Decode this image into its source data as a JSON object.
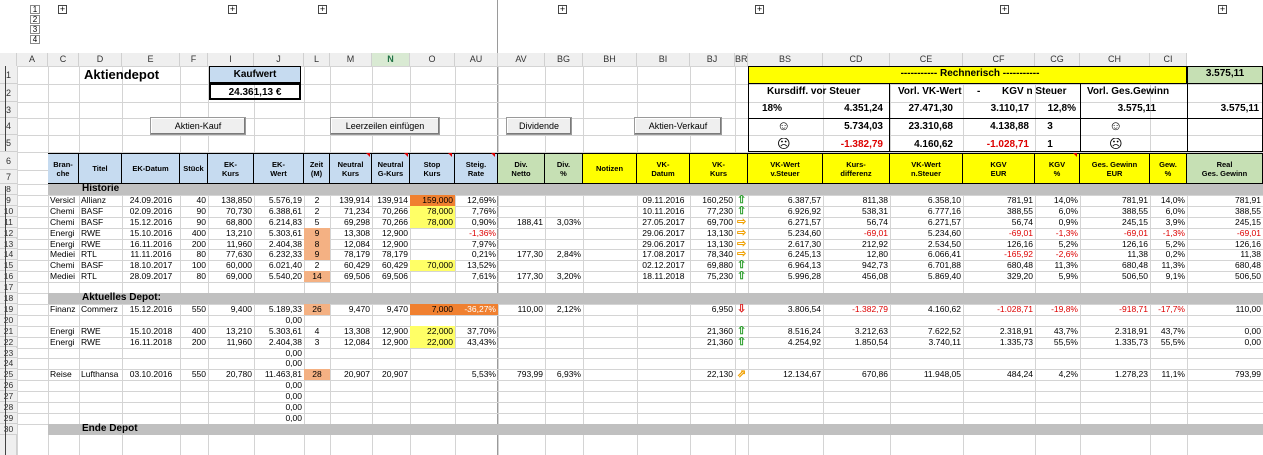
{
  "sheet_title": "Aktiendepot",
  "kaufwert_label": "Kaufwert",
  "kaufwert_value": "24.361,13 €",
  "buttons": {
    "aktien_kauf": "Aktien-Kauf",
    "leerzeilen": "Leerzeilen einfügen",
    "dividende": "Dividende",
    "aktien_verkauf": "Aktien-Verkauf"
  },
  "outline_levels_cols": [
    "1",
    "2",
    "3",
    "4"
  ],
  "outline_levels_rows": [
    "1",
    "2"
  ],
  "columns": [
    "A",
    "C",
    "D",
    "E",
    "F",
    "I",
    "J",
    "L",
    "M",
    "N",
    "O",
    "AU",
    "AV",
    "BG",
    "BH",
    "BI",
    "BJ",
    "BR",
    "BS",
    "CD",
    "CE",
    "CF",
    "CG",
    "CH",
    "CI"
  ],
  "row_numbers": [
    "1",
    "2",
    "3",
    "4",
    "5",
    "6",
    "7",
    "8",
    "9",
    "10",
    "11",
    "12",
    "13",
    "14",
    "15",
    "16",
    "17",
    "18",
    "19",
    "20",
    "21",
    "22",
    "23",
    "24",
    "25",
    "26",
    "27",
    "28",
    "29",
    "30"
  ],
  "rechnerisch": {
    "title": "----------- Rechnerisch -----------",
    "realisiert": "3.575,11",
    "kursdiff_label": "Kursdiff. vor Steuer",
    "vorl_vk_label": "Vorl. VK-Wert",
    "dash": "-",
    "kgv_label": "KGV n Steuer",
    "vorl_gewinn_label": "Vorl. Ges.Gewinn",
    "pct": "18%",
    "kursdiff": "4.351,24",
    "vorl_vk": "27.471,30",
    "kgv": "3.110,17",
    "kgv_pct": "12,8%",
    "vorl_gewinn": "3.575,11",
    "good_kursdiff": "5.734,03",
    "good_vk": "23.310,68",
    "good_kgv": "4.138,88",
    "good_count": "3",
    "bad_kursdiff": "-1.382,79",
    "bad_vk": "4.160,62",
    "bad_kgv": "-1.028,71",
    "bad_count": "1",
    "smile_happy": "☺",
    "smile_sad": "☹"
  },
  "headers": [
    "Bran-\nche",
    "Titel",
    "EK-Datum",
    "Stück",
    "EK-\nKurs",
    "EK-\nWert",
    "Zeit\n(M)",
    "Neutral\nKurs",
    "Neutral\nG-Kurs",
    "Stop\nKurs",
    "Steig.\nRate",
    "Div.\nNetto",
    "Div.\n%",
    "Notizen",
    "VK-\nDatum",
    "VK-\nKurs",
    "VK-Wert\nv.Steuer",
    "Kurs-\ndifferenz",
    "VK-Wert\nn.Steuer",
    "KGV\nEUR",
    "KGV\n%",
    "Ges. Gewinn\nEUR",
    "Gew.\n%",
    "Real\nGes. Gewinn"
  ],
  "sections": {
    "historie": "Historie",
    "aktuelles": "Aktuelles Depot:",
    "ende": "Ende Depot"
  },
  "rows": [
    {
      "n": "9",
      "cells": [
        "Versicl",
        "Allianz",
        "24.09.2016",
        "40",
        "138,850",
        "5.576,19",
        "2",
        "139,914",
        "139,914",
        "159,000",
        "12,69%",
        "",
        "",
        "",
        "09.11.2016",
        "160,250",
        "up",
        "6.387,57",
        "811,38",
        "6.358,10",
        "781,91",
        "14,0%",
        "781,91",
        "14,0%",
        "781,91"
      ]
    },
    {
      "n": "10",
      "cells": [
        "Chemi",
        "BASF",
        "02.09.2016",
        "90",
        "70,730",
        "6.388,61",
        "2",
        "71,234",
        "70,266",
        "78,000",
        "7,76%",
        "",
        "",
        "",
        "10.11.2016",
        "77,230",
        "up",
        "6.926,92",
        "538,31",
        "6.777,16",
        "388,55",
        "6,0%",
        "388,55",
        "6,0%",
        "388,55"
      ]
    },
    {
      "n": "11",
      "cells": [
        "Chemi",
        "BASF",
        "15.12.2016",
        "90",
        "68,800",
        "6.214,83",
        "5",
        "69,298",
        "70,266",
        "78,000",
        "0,90%",
        "188,41",
        "3,03%",
        "",
        "27.05.2017",
        "69,700",
        "rt",
        "6.271,57",
        "56,74",
        "6.271,57",
        "56,74",
        "0,9%",
        "245,15",
        "3,9%",
        "245,15"
      ]
    },
    {
      "n": "12",
      "cells": [
        "Energi",
        "RWE",
        "15.10.2016",
        "400",
        "13,210",
        "5.303,61",
        "9",
        "13,308",
        "12,900",
        "",
        "-1,36%",
        "",
        "",
        "",
        "29.06.2017",
        "13,130",
        "rt",
        "5.234,60",
        "-69,01",
        "5.234,60",
        "-69,01",
        "-1,3%",
        "-69,01",
        "-1,3%",
        "-69,01"
      ]
    },
    {
      "n": "13",
      "cells": [
        "Energi",
        "RWE",
        "16.11.2016",
        "200",
        "11,960",
        "2.404,38",
        "8",
        "12,084",
        "12,900",
        "",
        "7,97%",
        "",
        "",
        "",
        "29.06.2017",
        "13,130",
        "rt",
        "2.617,30",
        "212,92",
        "2.534,50",
        "126,16",
        "5,2%",
        "126,16",
        "5,2%",
        "126,16"
      ]
    },
    {
      "n": "14",
      "cells": [
        "Mediei",
        "RTL",
        "11.11.2016",
        "80",
        "77,630",
        "6.232,33",
        "9",
        "78,179",
        "78,179",
        "",
        "0,21%",
        "177,30",
        "2,84%",
        "",
        "17.08.2017",
        "78,340",
        "rt",
        "6.245,13",
        "12,80",
        "6.066,41",
        "-165,92",
        "-2,6%",
        "11,38",
        "0,2%",
        "11,38"
      ]
    },
    {
      "n": "15",
      "cells": [
        "Chemi",
        "BASF",
        "18.10.2017",
        "100",
        "60,000",
        "6.021,40",
        "2",
        "60,429",
        "60,429",
        "70,000",
        "13,52%",
        "",
        "",
        "",
        "02.12.2017",
        "69,880",
        "up",
        "6.964,13",
        "942,73",
        "6.701,88",
        "680,48",
        "11,3%",
        "680,48",
        "11,3%",
        "680,48"
      ]
    },
    {
      "n": "16",
      "cells": [
        "Mediei",
        "RTL",
        "28.09.2017",
        "80",
        "69,000",
        "5.540,20",
        "14",
        "69,506",
        "69,506",
        "",
        "7,61%",
        "177,30",
        "3,20%",
        "",
        "18.11.2018",
        "75,230",
        "up",
        "5.996,28",
        "456,08",
        "5.869,40",
        "329,20",
        "5,9%",
        "506,50",
        "9,1%",
        "506,50"
      ]
    },
    {
      "n": "19",
      "cells": [
        "Finanz",
        "Commerz",
        "15.12.2016",
        "550",
        "9,400",
        "5.189,33",
        "26",
        "9,470",
        "9,470",
        "7,000",
        "-36,27%",
        "110,00",
        "2,12%",
        "",
        "",
        "6,950",
        "dn",
        "3.806,54",
        "-1.382,79",
        "4.160,62",
        "-1.028,71",
        "-19,8%",
        "-918,71",
        "-17,7%",
        "110,00"
      ]
    },
    {
      "n": "20",
      "cells": [
        "",
        "",
        "",
        "",
        "",
        "0,00",
        "",
        "",
        "",
        "",
        "",
        "",
        "",
        "",
        "",
        "",
        "",
        "",
        "",
        "",
        "",
        "",
        "",
        "",
        ""
      ]
    },
    {
      "n": "21",
      "cells": [
        "Energi",
        "RWE",
        "15.10.2018",
        "400",
        "13,210",
        "5.303,61",
        "4",
        "13,308",
        "12,900",
        "22,000",
        "37,70%",
        "",
        "",
        "",
        "",
        "21,360",
        "up",
        "8.516,24",
        "3.212,63",
        "7.622,52",
        "2.318,91",
        "43,7%",
        "2.318,91",
        "43,7%",
        "0,00"
      ]
    },
    {
      "n": "22",
      "cells": [
        "Energi",
        "RWE",
        "16.11.2018",
        "200",
        "11,960",
        "2.404,38",
        "3",
        "12,084",
        "12,900",
        "22,000",
        "43,43%",
        "",
        "",
        "",
        "",
        "21,360",
        "up",
        "4.254,92",
        "1.850,54",
        "3.740,11",
        "1.335,73",
        "55,5%",
        "1.335,73",
        "55,5%",
        "0,00"
      ]
    },
    {
      "n": "23",
      "cells": [
        "",
        "",
        "",
        "",
        "",
        "0,00",
        "",
        "",
        "",
        "",
        "",
        "",
        "",
        "",
        "",
        "",
        "",
        "",
        "",
        "",
        "",
        "",
        "",
        "",
        ""
      ]
    },
    {
      "n": "24",
      "cells": [
        "",
        "",
        "",
        "",
        "",
        "0,00",
        "",
        "",
        "",
        "",
        "",
        "",
        "",
        "",
        "",
        "",
        "",
        "",
        "",
        "",
        "",
        "",
        "",
        "",
        ""
      ]
    },
    {
      "n": "25",
      "cells": [
        "Reise",
        "Lufthansa",
        "03.10.2016",
        "550",
        "20,780",
        "11.463,81",
        "28",
        "20,907",
        "20,907",
        "",
        "5,53%",
        "793,99",
        "6,93%",
        "",
        "",
        "22,130",
        "ur",
        "12.134,67",
        "670,86",
        "11.948,05",
        "484,24",
        "4,2%",
        "1.278,23",
        "11,1%",
        "793,99"
      ]
    },
    {
      "n": "26",
      "cells": [
        "",
        "",
        "",
        "",
        "",
        "0,00",
        "",
        "",
        "",
        "",
        "",
        "",
        "",
        "",
        "",
        "",
        "",
        "",
        "",
        "",
        "",
        "",
        "",
        "",
        ""
      ]
    },
    {
      "n": "27",
      "cells": [
        "",
        "",
        "",
        "",
        "",
        "0,00",
        "",
        "",
        "",
        "",
        "",
        "",
        "",
        "",
        "",
        "",
        "",
        "",
        "",
        "",
        "",
        "",
        "",
        "",
        ""
      ]
    },
    {
      "n": "28",
      "cells": [
        "",
        "",
        "",
        "",
        "",
        "0,00",
        "",
        "",
        "",
        "",
        "",
        "",
        "",
        "",
        "",
        "",
        "",
        "",
        "",
        "",
        "",
        "",
        "",
        "",
        ""
      ]
    },
    {
      "n": "29",
      "cells": [
        "",
        "",
        "",
        "",
        "",
        "0,00",
        "",
        "",
        "",
        "",
        "",
        "",
        "",
        "",
        "",
        "",
        "",
        "",
        "",
        "",
        "",
        "",
        "",
        "",
        ""
      ]
    }
  ],
  "colors": {
    "header_blue": "#c6dbf0",
    "header_green": "#c6e0b4",
    "header_yellow": "#ffff00",
    "section_gray": "#c0c0c0",
    "orange": "#f4b183",
    "stop_orange": "#f08030",
    "stop_yellow": "#ffff66"
  }
}
